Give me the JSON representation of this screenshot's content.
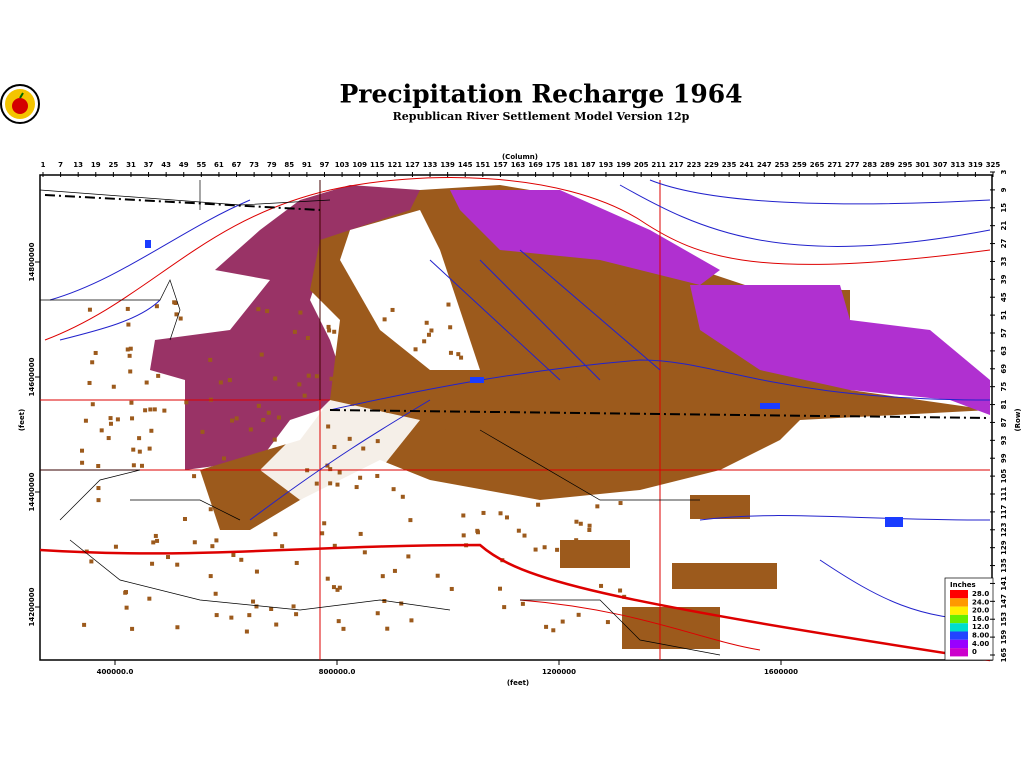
{
  "header": {
    "title": "Precipitation Recharge 1964",
    "subtitle": "Republican River Settlement Model Version 12p"
  },
  "map": {
    "column_axis": {
      "label": "(Column)",
      "ticks": [
        1,
        7,
        13,
        19,
        25,
        31,
        37,
        43,
        49,
        55,
        61,
        67,
        73,
        79,
        85,
        91,
        97,
        103,
        109,
        115,
        121,
        127,
        133,
        139,
        145,
        151,
        157,
        163,
        169,
        175,
        181,
        187,
        193,
        199,
        205,
        211,
        217,
        223,
        229,
        235,
        241,
        247,
        253,
        259,
        265,
        271,
        277,
        283,
        289,
        295,
        301,
        307,
        313,
        319,
        325
      ]
    },
    "row_axis": {
      "label": "(Row)",
      "ticks": [
        3,
        9,
        15,
        21,
        27,
        33,
        39,
        45,
        51,
        57,
        63,
        69,
        75,
        81,
        87,
        93,
        99,
        105,
        111,
        117,
        123,
        129,
        135,
        141,
        147,
        153,
        159,
        165
      ]
    },
    "x_axis": {
      "label": "(feet)",
      "ticks": [
        {
          "value": 400000,
          "label": "400000.0"
        },
        {
          "value": 800000,
          "label": "800000.0"
        },
        1200000,
        1600000
      ]
    },
    "y_axis": {
      "label": "(feet)",
      "ticks": [
        14800000,
        14600000,
        14400000,
        14200000
      ]
    },
    "legend": {
      "title": "Inches",
      "entries": [
        {
          "value": 28,
          "label": "28.0"
        },
        {
          "value": 24,
          "label": "24.0"
        },
        {
          "value": 20,
          "label": "20.0"
        },
        {
          "value": 16,
          "label": "16.0"
        },
        {
          "value": 12,
          "label": "12.0"
        },
        {
          "value": 8,
          "label": "8.00"
        },
        {
          "value": 4,
          "label": "4.00"
        },
        0
      ]
    }
  }
}
